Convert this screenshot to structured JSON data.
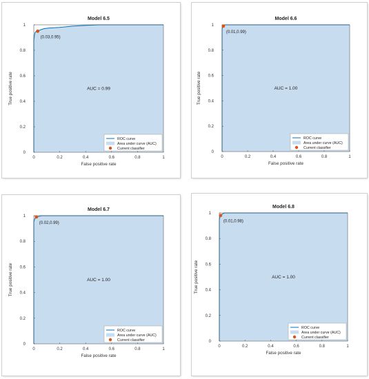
{
  "chart_data": [
    {
      "type": "area",
      "title": "Model 6.5",
      "xlabel": "False positive rate",
      "ylabel": "True positive rate",
      "xlim": [
        0,
        1
      ],
      "ylim": [
        0,
        1
      ],
      "xticks": [
        "0",
        "0.2",
        "0.4",
        "0.6",
        "0.8",
        "1"
      ],
      "yticks": [
        "0",
        "0.2",
        "0.4",
        "0.6",
        "0.8",
        "1"
      ],
      "series": [
        {
          "name": "ROC curve",
          "x": [
            0,
            0,
            0.005,
            0.01,
            0.02,
            0.03,
            0.05,
            0.08,
            0.12,
            0.2,
            0.3,
            0.4,
            0.5,
            0.6,
            0.8,
            1.0
          ],
          "y": [
            0,
            0.88,
            0.92,
            0.94,
            0.95,
            0.95,
            0.96,
            0.97,
            0.975,
            0.98,
            0.99,
            0.995,
            1.0,
            1.0,
            1.0,
            1.0
          ]
        }
      ],
      "current_point": {
        "x": 0.03,
        "y": 0.95,
        "label": "(0.03,0.95)"
      },
      "auc_label": "AUC = 0.99",
      "legend": {
        "position": "bottom-right",
        "entries": [
          "ROC curve",
          "Area under curve (AUC)",
          "Current classifier"
        ]
      },
      "grid": true,
      "colors": {
        "line": "#0072BD",
        "fill": "#C8DCF0",
        "point": "#D95319"
      }
    },
    {
      "type": "area",
      "title": "Model 6.6",
      "xlabel": "False positive rate",
      "ylabel": "True positive rate",
      "xlim": [
        0,
        1
      ],
      "ylim": [
        0,
        1
      ],
      "xticks": [
        "0",
        "0.2",
        "0.4",
        "0.6",
        "0.8",
        "1"
      ],
      "yticks": [
        "0",
        "0.2",
        "0.4",
        "0.6",
        "0.8",
        "1"
      ],
      "series": [
        {
          "name": "ROC curve",
          "x": [
            0,
            0,
            0.005,
            0.01,
            0.02,
            1.0
          ],
          "y": [
            0,
            0.97,
            0.985,
            0.99,
            1.0,
            1.0
          ]
        }
      ],
      "current_point": {
        "x": 0.01,
        "y": 0.99,
        "label": "(0.01,0.99)"
      },
      "auc_label": "AUC = 1.00",
      "legend": {
        "position": "bottom-right",
        "entries": [
          "ROC curve",
          "Area under curve (AUC)",
          "Current classifier"
        ]
      },
      "grid": true,
      "colors": {
        "line": "#0072BD",
        "fill": "#C8DCF0",
        "point": "#D95319"
      }
    },
    {
      "type": "area",
      "title": "Model 6.7",
      "xlabel": "False positive rate",
      "ylabel": "True positive rate",
      "xlim": [
        0,
        1
      ],
      "ylim": [
        0,
        1
      ],
      "xticks": [
        "0",
        "0.2",
        "0.4",
        "0.6",
        "0.8",
        "1"
      ],
      "yticks": [
        "0",
        "0.2",
        "0.4",
        "0.6",
        "0.8",
        "1"
      ],
      "series": [
        {
          "name": "ROC curve",
          "x": [
            0,
            0,
            0.005,
            0.01,
            0.02,
            0.04,
            0.06,
            1.0
          ],
          "y": [
            0,
            0.95,
            0.97,
            0.98,
            0.99,
            0.995,
            1.0,
            1.0
          ]
        }
      ],
      "current_point": {
        "x": 0.02,
        "y": 0.99,
        "label": "(0.02,0.99)"
      },
      "auc_label": "AUC = 1.00",
      "legend": {
        "position": "bottom-right",
        "entries": [
          "ROC curve",
          "Area under curve (AUC)",
          "Current classifier"
        ]
      },
      "grid": true,
      "colors": {
        "line": "#0072BD",
        "fill": "#C8DCF0",
        "point": "#D95319"
      }
    },
    {
      "type": "area",
      "title": "Model 6.8",
      "xlabel": "False positive rate",
      "ylabel": "True positive rate",
      "xlim": [
        0,
        1
      ],
      "ylim": [
        0,
        1
      ],
      "xticks": [
        "0",
        "0.2",
        "0.4",
        "0.6",
        "0.8",
        "1"
      ],
      "yticks": [
        "0",
        "0.2",
        "0.4",
        "0.6",
        "0.8",
        "1"
      ],
      "series": [
        {
          "name": "ROC curve",
          "x": [
            0,
            0,
            0.005,
            0.01,
            0.02,
            0.04,
            1.0
          ],
          "y": [
            0,
            0.95,
            0.97,
            0.98,
            0.99,
            1.0,
            1.0
          ]
        }
      ],
      "current_point": {
        "x": 0.01,
        "y": 0.98,
        "label": "(0.01,0.98)"
      },
      "auc_label": "AUC = 1.00",
      "legend": {
        "position": "bottom-right",
        "entries": [
          "ROC curve",
          "Area under curve (AUC)",
          "Current classifier"
        ]
      },
      "grid": true,
      "colors": {
        "line": "#0072BD",
        "fill": "#C8DCF0",
        "point": "#D95319"
      }
    }
  ]
}
